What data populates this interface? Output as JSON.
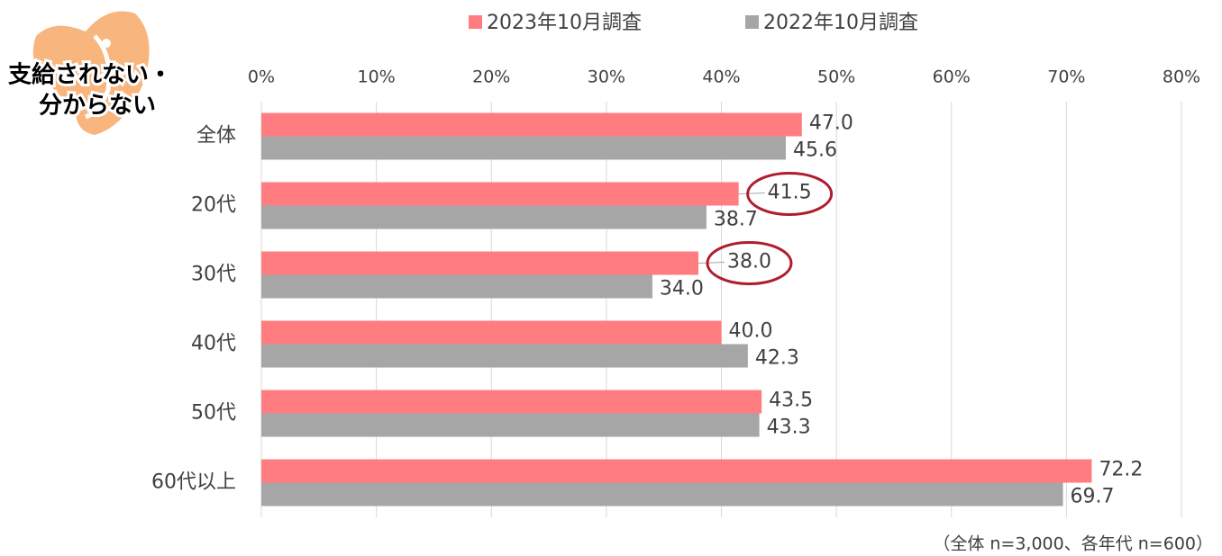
{
  "chart_data": {
    "type": "hbar",
    "title_lines": [
      "支給されない・",
      "分からない"
    ],
    "note": "（全体 n=3,000、各年代 n=600）",
    "categories": [
      "全体",
      "20代",
      "30代",
      "40代",
      "50代",
      "60代以上"
    ],
    "series": [
      {
        "name": "2023年10月調査",
        "color": "#ff7c80",
        "values": [
          47.0,
          41.5,
          38.0,
          40.0,
          43.5,
          72.2
        ],
        "value_labels": [
          "47.0",
          "41.5",
          "38.0",
          "40.0",
          "43.5",
          "72.2"
        ]
      },
      {
        "name": "2022年10月調査",
        "color": "#a6a6a6",
        "values": [
          45.6,
          38.7,
          34.0,
          42.3,
          43.3,
          69.7
        ],
        "value_labels": [
          "45.6",
          "38.7",
          "34.0",
          "42.3",
          "43.3",
          "69.7"
        ]
      }
    ],
    "highlight": [
      "20代",
      "30代"
    ],
    "xlim": [
      0,
      80
    ],
    "xticks": [
      {
        "value": 0,
        "label": "0%"
      },
      {
        "value": 10,
        "label": "10%"
      },
      {
        "value": 20,
        "label": "20%"
      },
      {
        "value": 30,
        "label": "30%"
      },
      {
        "value": 40,
        "label": "40%"
      },
      {
        "value": 50,
        "label": "50%"
      },
      {
        "value": 60,
        "label": "60%"
      },
      {
        "value": 70,
        "label": "70%"
      },
      {
        "value": 80,
        "label": "80%"
      }
    ],
    "grid": true
  }
}
